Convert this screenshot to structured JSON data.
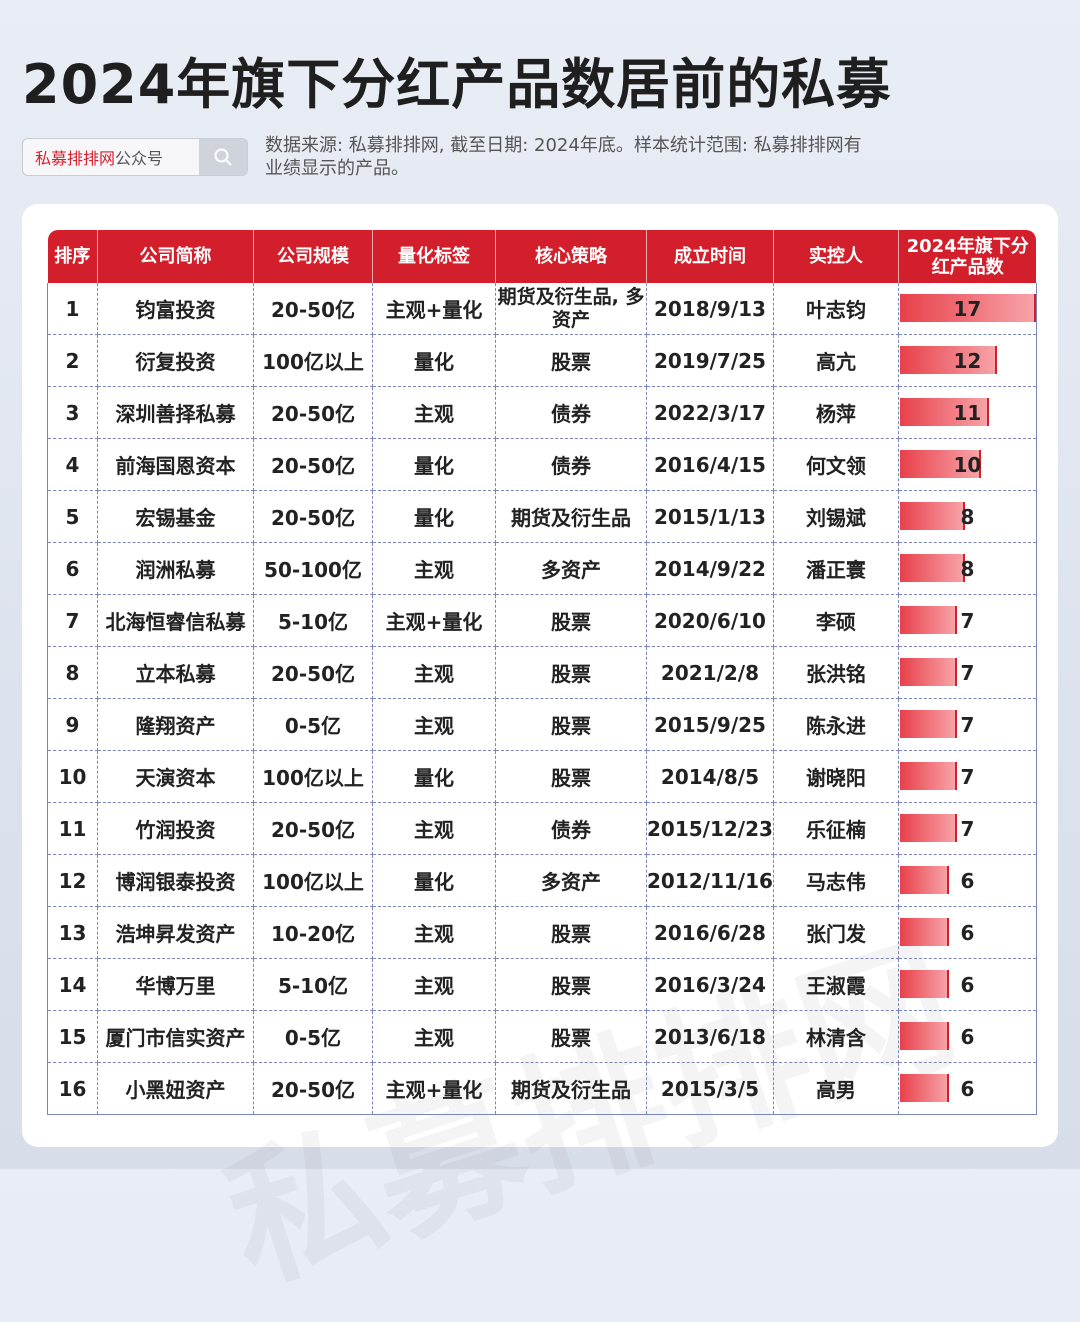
{
  "title": "2024年旗下分红产品数居前的私募",
  "search": {
    "brand": "私募排排网",
    "suffix": "公众号"
  },
  "note": "数据来源: 私募排排网, 截至日期: 2024年底。样本统计范围: 私募排排网有业绩显示的产品。",
  "watermark": "私募排排网",
  "max_count": 17,
  "table": {
    "headers": [
      "排序",
      "公司简称",
      "公司规模",
      "量化标签",
      "核心策略",
      "成立时间",
      "实控人",
      "2024年旗下分红产品数"
    ],
    "rows": [
      {
        "rank": "1",
        "name": "钧富投资",
        "scale": "20-50亿",
        "quant": "主观+量化",
        "strategy": "期货及衍生品, 多资产",
        "founded": "2018/9/13",
        "controller": "叶志钧",
        "count": 17
      },
      {
        "rank": "2",
        "name": "衍复投资",
        "scale": "100亿以上",
        "quant": "量化",
        "strategy": "股票",
        "founded": "2019/7/25",
        "controller": "高亢",
        "count": 12
      },
      {
        "rank": "3",
        "name": "深圳善择私募",
        "scale": "20-50亿",
        "quant": "主观",
        "strategy": "债券",
        "founded": "2022/3/17",
        "controller": "杨萍",
        "count": 11
      },
      {
        "rank": "4",
        "name": "前海国恩资本",
        "scale": "20-50亿",
        "quant": "量化",
        "strategy": "债券",
        "founded": "2016/4/15",
        "controller": "何文领",
        "count": 10
      },
      {
        "rank": "5",
        "name": "宏锡基金",
        "scale": "20-50亿",
        "quant": "量化",
        "strategy": "期货及衍生品",
        "founded": "2015/1/13",
        "controller": "刘锡斌",
        "count": 8
      },
      {
        "rank": "6",
        "name": "润洲私募",
        "scale": "50-100亿",
        "quant": "主观",
        "strategy": "多资产",
        "founded": "2014/9/22",
        "controller": "潘正寰",
        "count": 8
      },
      {
        "rank": "7",
        "name": "北海恒睿信私募",
        "scale": "5-10亿",
        "quant": "主观+量化",
        "strategy": "股票",
        "founded": "2020/6/10",
        "controller": "李硕",
        "count": 7
      },
      {
        "rank": "8",
        "name": "立本私募",
        "scale": "20-50亿",
        "quant": "主观",
        "strategy": "股票",
        "founded": "2021/2/8",
        "controller": "张洪铭",
        "count": 7
      },
      {
        "rank": "9",
        "name": "隆翔资产",
        "scale": "0-5亿",
        "quant": "主观",
        "strategy": "股票",
        "founded": "2015/9/25",
        "controller": "陈永进",
        "count": 7
      },
      {
        "rank": "10",
        "name": "天演资本",
        "scale": "100亿以上",
        "quant": "量化",
        "strategy": "股票",
        "founded": "2014/8/5",
        "controller": "谢晓阳",
        "count": 7
      },
      {
        "rank": "11",
        "name": "竹润投资",
        "scale": "20-50亿",
        "quant": "主观",
        "strategy": "债券",
        "founded": "2015/12/23",
        "controller": "乐征楠",
        "count": 7
      },
      {
        "rank": "12",
        "name": "博润银泰投资",
        "scale": "100亿以上",
        "quant": "量化",
        "strategy": "多资产",
        "founded": "2012/11/16",
        "controller": "马志伟",
        "count": 6
      },
      {
        "rank": "13",
        "name": "浩坤昇发资产",
        "scale": "10-20亿",
        "quant": "主观",
        "strategy": "股票",
        "founded": "2016/6/28",
        "controller": "张门发",
        "count": 6
      },
      {
        "rank": "14",
        "name": "华博万里",
        "scale": "5-10亿",
        "quant": "主观",
        "strategy": "股票",
        "founded": "2016/3/24",
        "controller": "王淑霞",
        "count": 6
      },
      {
        "rank": "15",
        "name": "厦门市信实资产",
        "scale": "0-5亿",
        "quant": "主观",
        "strategy": "股票",
        "founded": "2013/6/18",
        "controller": "林清含",
        "count": 6
      },
      {
        "rank": "16",
        "name": "小黑妞资产",
        "scale": "20-50亿",
        "quant": "主观+量化",
        "strategy": "期货及衍生品",
        "founded": "2015/3/5",
        "controller": "高男",
        "count": 6
      }
    ]
  }
}
